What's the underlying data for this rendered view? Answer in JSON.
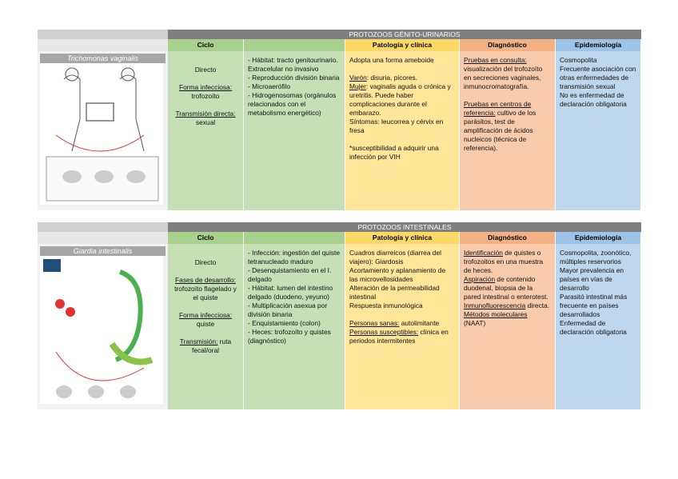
{
  "sections": [
    {
      "title": "PROTOZOOS GÉNITO-URINARIOS",
      "image_label": "Trichomonas vaginalis",
      "columns": [
        {
          "header": "Ciclo",
          "align": "center",
          "paragraphs": [
            [
              "Directo"
            ],
            [
              {
                "text": "Forma infecciosa:",
                "u": true
              },
              " trofozoíto"
            ],
            [
              {
                "text": "Transmisión directa:",
                "u": true
              },
              " sexual"
            ]
          ]
        },
        {
          "paragraphs": [
            [
              "- Hábitat: tracto genitourinario."
            ],
            [
              "Extracelular no invasivo"
            ],
            [
              "-  Reproducción división binaria"
            ],
            [
              "- Microaerófilo"
            ],
            [
              "- Hidrogenosomas (orgánulos relacionados con el metabolismo energético)"
            ]
          ]
        },
        {
          "header": "Patología y clínica",
          "paragraphs": [
            [
              "Adopta una forma ameboide"
            ],
            [],
            [
              {
                "text": "Varón",
                "u": true
              },
              ": disuria, picores."
            ],
            [
              {
                "text": "Mujer",
                "u": true
              },
              ": vaginalis aguda o crónica y uretritis. Puede haber complicaciones durante el embarazo."
            ],
            [
              "Síntomas: leucorrea y cérvix en fresa"
            ],
            [],
            [
              "*susceptibilidad a adquirir una infección por VIH"
            ]
          ]
        },
        {
          "header": "Diagnóstico",
          "paragraphs": [
            [
              {
                "text": "Pruebas en consulta:",
                "u": true
              },
              " visualización del trofozoíto en secreciones vaginales, inmunocromatografía."
            ],
            [],
            [
              {
                "text": "Pruebas en centros de referencia:",
                "u": true
              },
              " cultivo de los parásitos, test de amplificación de ácidos nucleicos (técnica de referencia)."
            ]
          ]
        },
        {
          "header": "Epidemiología",
          "paragraphs": [
            [
              "Cosmopolita"
            ],
            [
              "Frecuente asociación con otras enfermedades de transmisión sexual"
            ],
            [
              "No es enfermedad de declaración obligatoria"
            ]
          ]
        }
      ]
    },
    {
      "title": "PROTOZOOS INTESTINALES",
      "image_label": "Giardia intestinalis",
      "columns": [
        {
          "header": "Ciclo",
          "align": "center",
          "paragraphs": [
            [
              "Directo"
            ],
            [
              {
                "text": "Fases de desarrollo:",
                "u": true
              },
              " trofozoíto flagelado y el quiste"
            ],
            [
              {
                "text": "Forma infecciosa:",
                "u": true
              },
              " quiste"
            ],
            [
              {
                "text": "Transmisión:",
                "u": true
              },
              " ruta fecal/oral"
            ]
          ]
        },
        {
          "paragraphs": [
            [
              "- Infección: ingestión del quiste tetranucleado maduro"
            ],
            [
              "- Desenquistamiento en el I. delgado"
            ],
            [
              "- Hábitat: lumen del intestino delgado (duodeno, yeyuno)"
            ],
            [
              "- Multiplicación asexua por división binaria"
            ],
            [
              "- Enquistamiento (colon)"
            ],
            [
              "- Heces: trofozoíto y quistes (diagnóstico)"
            ]
          ]
        },
        {
          "header": "Patología y clínica",
          "paragraphs": [
            [
              "Cuadros diarreicos (diarrea del viajero): Giardosis"
            ],
            [
              "Acortamiento y aplanamiento de las microvellosidades"
            ],
            [
              "Alteración de la permeabilidad intestinal"
            ],
            [
              "Respuesta inmunológica"
            ],
            [],
            [
              {
                "text": "Personas sanas:",
                "u": true
              },
              " autolimitante"
            ],
            [
              {
                "text": "Personas susceptibles:",
                "u": true
              },
              " clínica en periodos intermitentes"
            ]
          ]
        },
        {
          "header": "Diagnóstico",
          "paragraphs": [
            [
              {
                "text": "Identificación",
                "u": true
              },
              " de quistes o trofozoitos en una muestra de heces."
            ],
            [
              {
                "text": "Aspiración",
                "u": true
              },
              " de contenido duodenal, biopsia de la pared intestinal o enterotest."
            ],
            [
              {
                "text": "Inmunofluorescencia",
                "u": true
              },
              " directa."
            ],
            [
              {
                "text": "Métodos moleculares",
                "u": true
              },
              " (NAAT)"
            ]
          ]
        },
        {
          "header": "Epidemiología",
          "paragraphs": [
            [
              "Cosmopolita, zoonótico, múltiples reservorios"
            ],
            [
              "Mayor prevalencia en países en vías de desarrollo"
            ],
            [
              "Parasitó intestinal más frecuente en países desarrollados"
            ],
            [
              "Enfermedad de declaración obligatoria"
            ]
          ]
        }
      ]
    }
  ]
}
